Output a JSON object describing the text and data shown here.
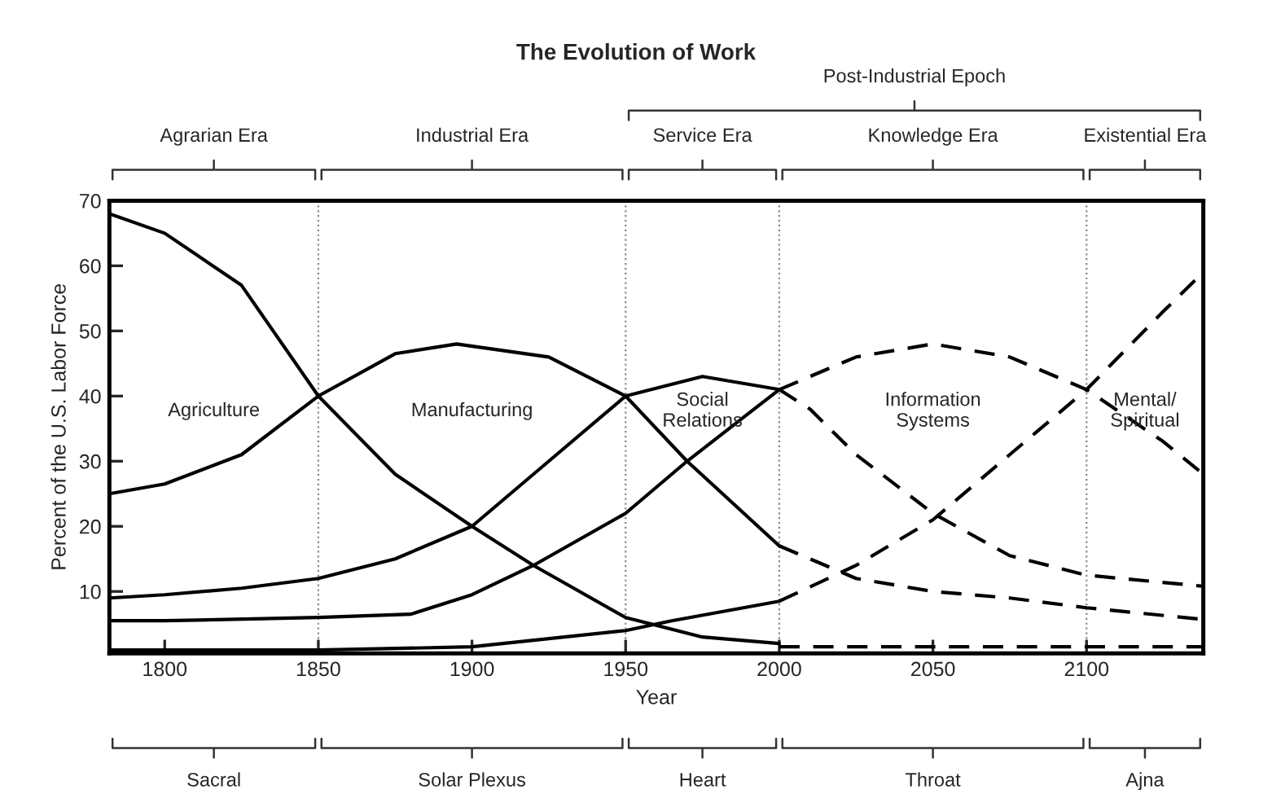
{
  "chart_data": {
    "type": "line",
    "title": "The Evolution of Work",
    "xlabel": "Year",
    "ylabel": "Percent of the U.S. Labor Force",
    "xlim": [
      1782,
      2138
    ],
    "xticks": [
      1800,
      1850,
      1900,
      1950,
      2000,
      2050,
      2100
    ],
    "ylim": [
      0.5,
      70
    ],
    "yticks": [
      10,
      20,
      30,
      40,
      50,
      60,
      70
    ],
    "grid": false,
    "series": [
      {
        "color": "#000000",
        "line_style": "solid",
        "x": [
          1782,
          1800,
          1825,
          1850,
          1875,
          1900,
          1920,
          1950,
          1975,
          2000
        ],
        "values": [
          68,
          65,
          57,
          40,
          28,
          20,
          14,
          6,
          3,
          2
        ]
      },
      {
        "color": "#000000",
        "line_style": "dashed",
        "x": [
          2000,
          2050,
          2100,
          2138
        ],
        "values": [
          1.5,
          1.5,
          1.5,
          1.5
        ]
      },
      {
        "color": "#000000",
        "line_style": "solid",
        "x": [
          1782,
          1800,
          1825,
          1850,
          1875,
          1895,
          1925,
          1950,
          1970,
          2000
        ],
        "values": [
          25,
          26.5,
          31,
          40,
          46.5,
          48,
          46,
          40,
          30,
          17
        ]
      },
      {
        "color": "#000000",
        "line_style": "dashed",
        "x": [
          2000,
          2025,
          2050,
          2075,
          2100,
          2138
        ],
        "values": [
          17,
          12,
          10,
          9,
          7.5,
          5.7
        ]
      },
      {
        "color": "#000000",
        "line_style": "solid",
        "x": [
          1782,
          1800,
          1825,
          1850,
          1875,
          1900,
          1925,
          1950,
          1975,
          2000
        ],
        "values": [
          9,
          9.5,
          10.5,
          12,
          15,
          20,
          30,
          40,
          43,
          41
        ]
      },
      {
        "color": "#000000",
        "line_style": "dashed",
        "x": [
          2000,
          2010,
          2025,
          2050,
          2075,
          2100,
          2138
        ],
        "values": [
          41,
          38,
          31,
          22,
          15.5,
          12.5,
          10.8
        ]
      },
      {
        "color": "#000000",
        "line_style": "solid",
        "x": [
          1782,
          1800,
          1850,
          1880,
          1900,
          1920,
          1950,
          1970,
          2000
        ],
        "values": [
          5.5,
          5.5,
          6,
          6.5,
          9.5,
          14,
          22,
          30,
          41
        ]
      },
      {
        "color": "#000000",
        "line_style": "dashed",
        "x": [
          2000,
          2025,
          2050,
          2075,
          2100,
          2125,
          2138
        ],
        "values": [
          41,
          46,
          48,
          46,
          41,
          33,
          28
        ]
      },
      {
        "color": "#000000",
        "line_style": "solid",
        "x": [
          1782,
          1850,
          1900,
          1950,
          1965,
          2000
        ],
        "values": [
          1,
          1,
          1.5,
          4,
          5.5,
          8.5
        ]
      },
      {
        "color": "#000000",
        "line_style": "dashed",
        "x": [
          2000,
          2025,
          2050,
          2075,
          2100,
          2125,
          2138
        ],
        "values": [
          8.5,
          14,
          21,
          31,
          41,
          53,
          59
        ]
      }
    ],
    "ref_lines": [
      {
        "axis": "x",
        "value": 1850,
        "color": "#888888",
        "line_style": "dotted"
      },
      {
        "axis": "x",
        "value": 1950,
        "color": "#888888",
        "line_style": "dotted"
      },
      {
        "axis": "x",
        "value": 2000,
        "color": "#888888",
        "line_style": "dotted"
      },
      {
        "axis": "x",
        "value": 2100,
        "color": "#888888",
        "line_style": "dotted"
      }
    ],
    "annotations": [
      "Agriculture",
      "Manufacturing",
      "Social\nRelations",
      "Information\nSystems",
      "Mental/\nSpiritual",
      "Agrarian Era",
      "Industrial Era",
      "Service Era",
      "Knowledge Era",
      "Existential Era",
      "Post-Industrial Epoch",
      "Sacral",
      "Solar Plexus",
      "Heart",
      "Throat",
      "Ajna"
    ]
  }
}
